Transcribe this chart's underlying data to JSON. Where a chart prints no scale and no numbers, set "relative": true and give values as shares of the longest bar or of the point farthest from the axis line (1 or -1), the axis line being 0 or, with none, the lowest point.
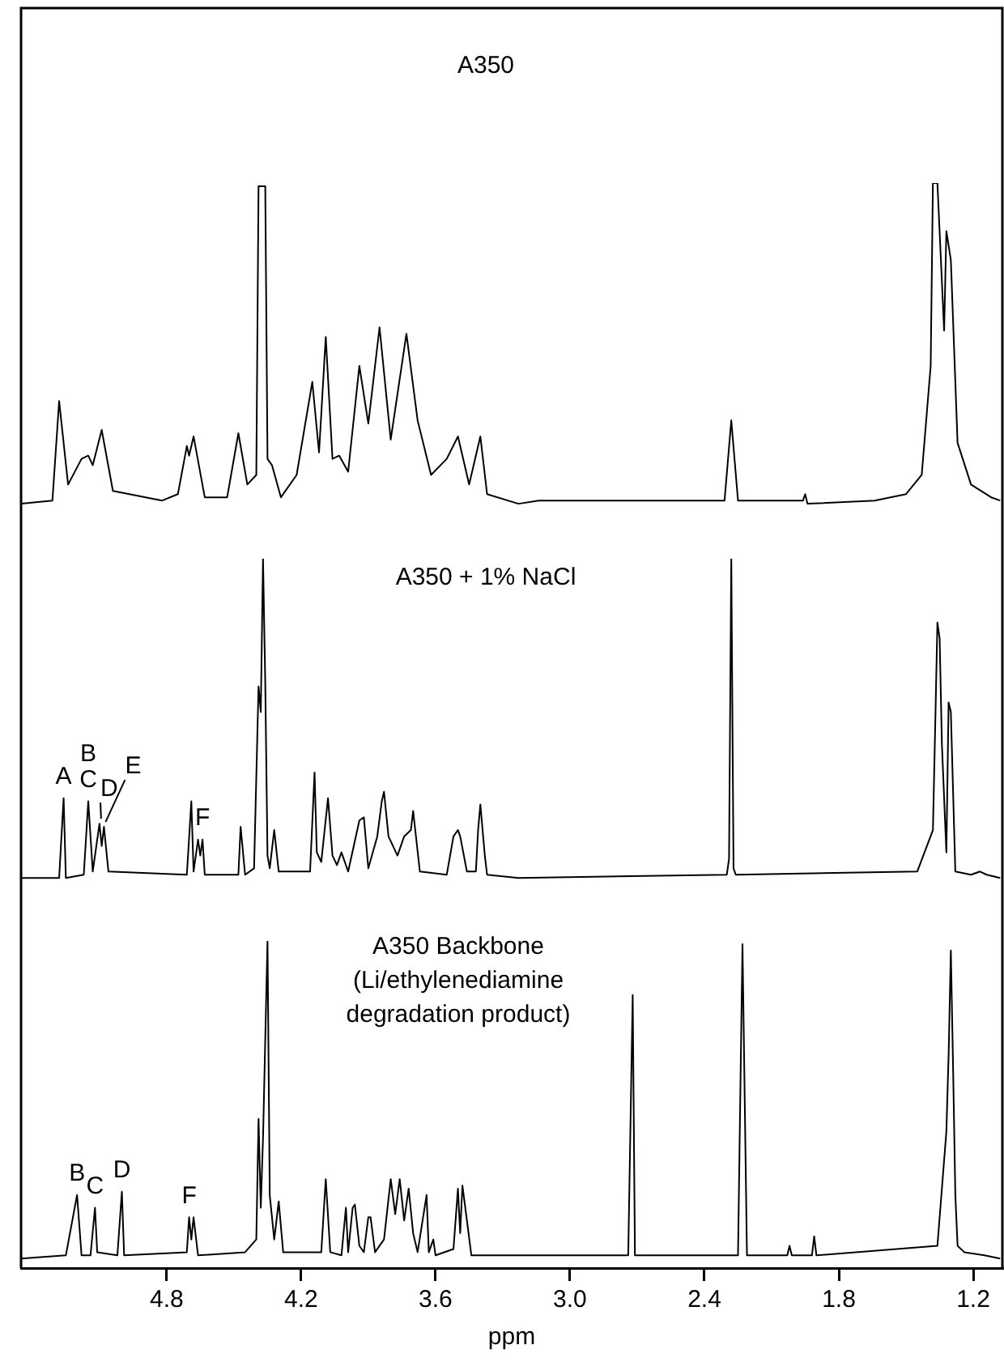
{
  "chart_data": [
    {
      "type": "line",
      "title": "A350",
      "relative": true,
      "tick_labels": false,
      "xlim": [
        5.45,
        1.07
      ],
      "color": "#000000",
      "x": [
        5.45,
        5.31,
        5.28,
        5.24,
        5.18,
        5.15,
        5.13,
        5.09,
        5.04,
        4.82,
        4.75,
        4.71,
        4.7,
        4.68,
        4.63,
        4.53,
        4.48,
        4.44,
        4.4,
        4.39,
        4.36,
        4.35,
        4.33,
        4.29,
        4.22,
        4.15,
        4.12,
        4.09,
        4.06,
        4.03,
        3.99,
        3.94,
        3.9,
        3.85,
        3.8,
        3.73,
        3.68,
        3.62,
        3.55,
        3.5,
        3.45,
        3.4,
        3.37,
        3.23,
        3.14,
        2.31,
        2.28,
        2.25,
        1.96,
        1.95,
        1.94,
        1.64,
        1.5,
        1.43,
        1.39,
        1.38,
        1.36,
        1.33,
        1.32,
        1.3,
        1.27,
        1.21,
        1.12,
        1.08
      ],
      "values": [
        0,
        0.01,
        0.32,
        0.06,
        0.14,
        0.15,
        0.12,
        0.23,
        0.04,
        0.01,
        0.03,
        0.18,
        0.15,
        0.21,
        0.02,
        0.02,
        0.22,
        0.06,
        0.09,
        0.99,
        0.99,
        0.14,
        0.12,
        0.02,
        0.09,
        0.38,
        0.16,
        0.52,
        0.14,
        0.15,
        0.1,
        0.43,
        0.25,
        0.55,
        0.2,
        0.53,
        0.26,
        0.09,
        0.14,
        0.21,
        0.06,
        0.21,
        0.03,
        0,
        0.01,
        0.01,
        0.26,
        0.01,
        0.01,
        0.03,
        0,
        0.01,
        0.03,
        0.09,
        0.43,
        1,
        1,
        0.54,
        0.85,
        0.76,
        0.19,
        0.06,
        0.02,
        0.01
      ]
    },
    {
      "type": "line",
      "title": "A350 + 1% NaCl",
      "relative": true,
      "tick_labels": false,
      "xlim": [
        5.45,
        1.07
      ],
      "color": "#000000",
      "x": [
        5.45,
        5.28,
        5.26,
        5.25,
        5.17,
        5.15,
        5.13,
        5.1,
        5.09,
        5.08,
        5.06,
        4.71,
        4.69,
        4.68,
        4.66,
        4.65,
        4.64,
        4.63,
        4.48,
        4.47,
        4.45,
        4.41,
        4.39,
        4.38,
        4.37,
        4.36,
        4.35,
        4.34,
        4.32,
        4.3,
        4.16,
        4.14,
        4.13,
        4.11,
        4.08,
        4.06,
        4.04,
        4.02,
        3.99,
        3.94,
        3.92,
        3.9,
        3.86,
        3.84,
        3.83,
        3.81,
        3.77,
        3.74,
        3.71,
        3.7,
        3.67,
        3.55,
        3.52,
        3.5,
        3.49,
        3.46,
        3.42,
        3.41,
        3.4,
        3.38,
        3.37,
        3.23,
        2.3,
        2.29,
        2.28,
        2.27,
        2.26,
        1.45,
        1.38,
        1.37,
        1.36,
        1.35,
        1.34,
        1.32,
        1.31,
        1.3,
        1.28,
        1.21,
        1.17,
        1.14,
        1.08
      ],
      "values": [
        0,
        0,
        0.25,
        0,
        0.01,
        0.24,
        0.02,
        0.17,
        0.1,
        0.16,
        0.02,
        0.01,
        0.24,
        0.02,
        0.12,
        0.07,
        0.12,
        0.01,
        0.01,
        0.16,
        0.01,
        0.03,
        0.6,
        0.52,
        1.0,
        0.61,
        0.07,
        0.03,
        0.15,
        0.02,
        0.02,
        0.33,
        0.08,
        0.05,
        0.25,
        0.07,
        0.04,
        0.08,
        0.02,
        0.18,
        0.19,
        0.03,
        0.13,
        0.24,
        0.27,
        0.13,
        0.07,
        0.13,
        0.15,
        0.21,
        0.02,
        0.01,
        0.13,
        0.15,
        0.13,
        0.02,
        0.02,
        0.15,
        0.23,
        0.07,
        0.01,
        0,
        0.01,
        0.06,
        1.0,
        0.03,
        0.01,
        0.02,
        0.15,
        0.47,
        0.8,
        0.75,
        0.42,
        0.08,
        0.55,
        0.52,
        0.02,
        0.01,
        0.02,
        0.01,
        0
      ],
      "annotations": [
        {
          "text": "A",
          "x": 5.26,
          "y": 0.25
        },
        {
          "text": "B",
          "x": 5.15,
          "y": 0.24
        },
        {
          "text": "C",
          "x": 5.15,
          "y": 0.24
        },
        {
          "text": "D",
          "x": 5.1,
          "y": 0.17
        },
        {
          "text": "E",
          "x": 5.08,
          "y": 0.16
        },
        {
          "text": "F",
          "x": 4.64,
          "y": 0.12
        }
      ]
    },
    {
      "type": "line",
      "title": "A350 Backbone\n(Li/ethylenediamine\ndegradation product)",
      "relative": true,
      "tick_labels": "x",
      "xlabel": "ppm",
      "xlim": [
        5.45,
        1.07
      ],
      "color": "#000000",
      "xticks": [
        4.8,
        4.2,
        3.6,
        {
          "value": 3,
          "label": "3.0"
        },
        2.4,
        1.8,
        1.2
      ],
      "x": [
        5.45,
        5.25,
        5.2,
        5.18,
        5.14,
        5.12,
        5.11,
        5.02,
        5.0,
        4.99,
        4.71,
        4.7,
        4.69,
        4.68,
        4.66,
        4.45,
        4.4,
        4.39,
        4.38,
        4.37,
        4.35,
        4.34,
        4.32,
        4.3,
        4.28,
        4.11,
        4.09,
        4.07,
        4.02,
        4.0,
        3.99,
        3.97,
        3.96,
        3.94,
        3.92,
        3.9,
        3.89,
        3.87,
        3.83,
        3.8,
        3.78,
        3.76,
        3.74,
        3.72,
        3.7,
        3.68,
        3.64,
        3.63,
        3.61,
        3.6,
        3.52,
        3.5,
        3.49,
        3.48,
        3.46,
        3.44,
        3.35,
        2.74,
        2.72,
        2.71,
        2.25,
        2.23,
        2.21,
        2.03,
        2.02,
        2.01,
        1.92,
        1.91,
        1.9,
        1.36,
        1.32,
        1.31,
        1.3,
        1.29,
        1.28,
        1.27,
        1.24,
        1.15,
        1.08
      ],
      "values": [
        0,
        0.01,
        0.2,
        0.01,
        0.01,
        0.16,
        0.02,
        0.01,
        0.21,
        0.01,
        0.02,
        0.13,
        0.06,
        0.13,
        0.01,
        0.02,
        0.06,
        0.44,
        0.16,
        0.38,
        1.0,
        0.2,
        0.06,
        0.18,
        0.02,
        0.02,
        0.25,
        0.02,
        0.01,
        0.16,
        0.02,
        0.16,
        0.17,
        0.04,
        0.02,
        0.13,
        0.13,
        0.02,
        0.06,
        0.25,
        0.14,
        0.25,
        0.12,
        0.22,
        0.08,
        0.02,
        0.2,
        0.02,
        0.06,
        0.01,
        0.03,
        0.22,
        0.08,
        0.23,
        0.12,
        0.01,
        0.01,
        0.01,
        0.83,
        0.01,
        0.01,
        0.99,
        0.01,
        0.01,
        0.04,
        0.01,
        0.01,
        0.07,
        0.01,
        0.04,
        0.4,
        0.64,
        0.97,
        0.6,
        0.2,
        0.04,
        0.02,
        0.01,
        0
      ],
      "annotations": [
        {
          "text": "B",
          "x": 5.2,
          "y": 0.2
        },
        {
          "text": "C",
          "x": 5.12,
          "y": 0.16
        },
        {
          "text": "D",
          "x": 5.0,
          "y": 0.21
        },
        {
          "text": "F",
          "x": 4.7,
          "y": 0.13
        }
      ]
    }
  ]
}
